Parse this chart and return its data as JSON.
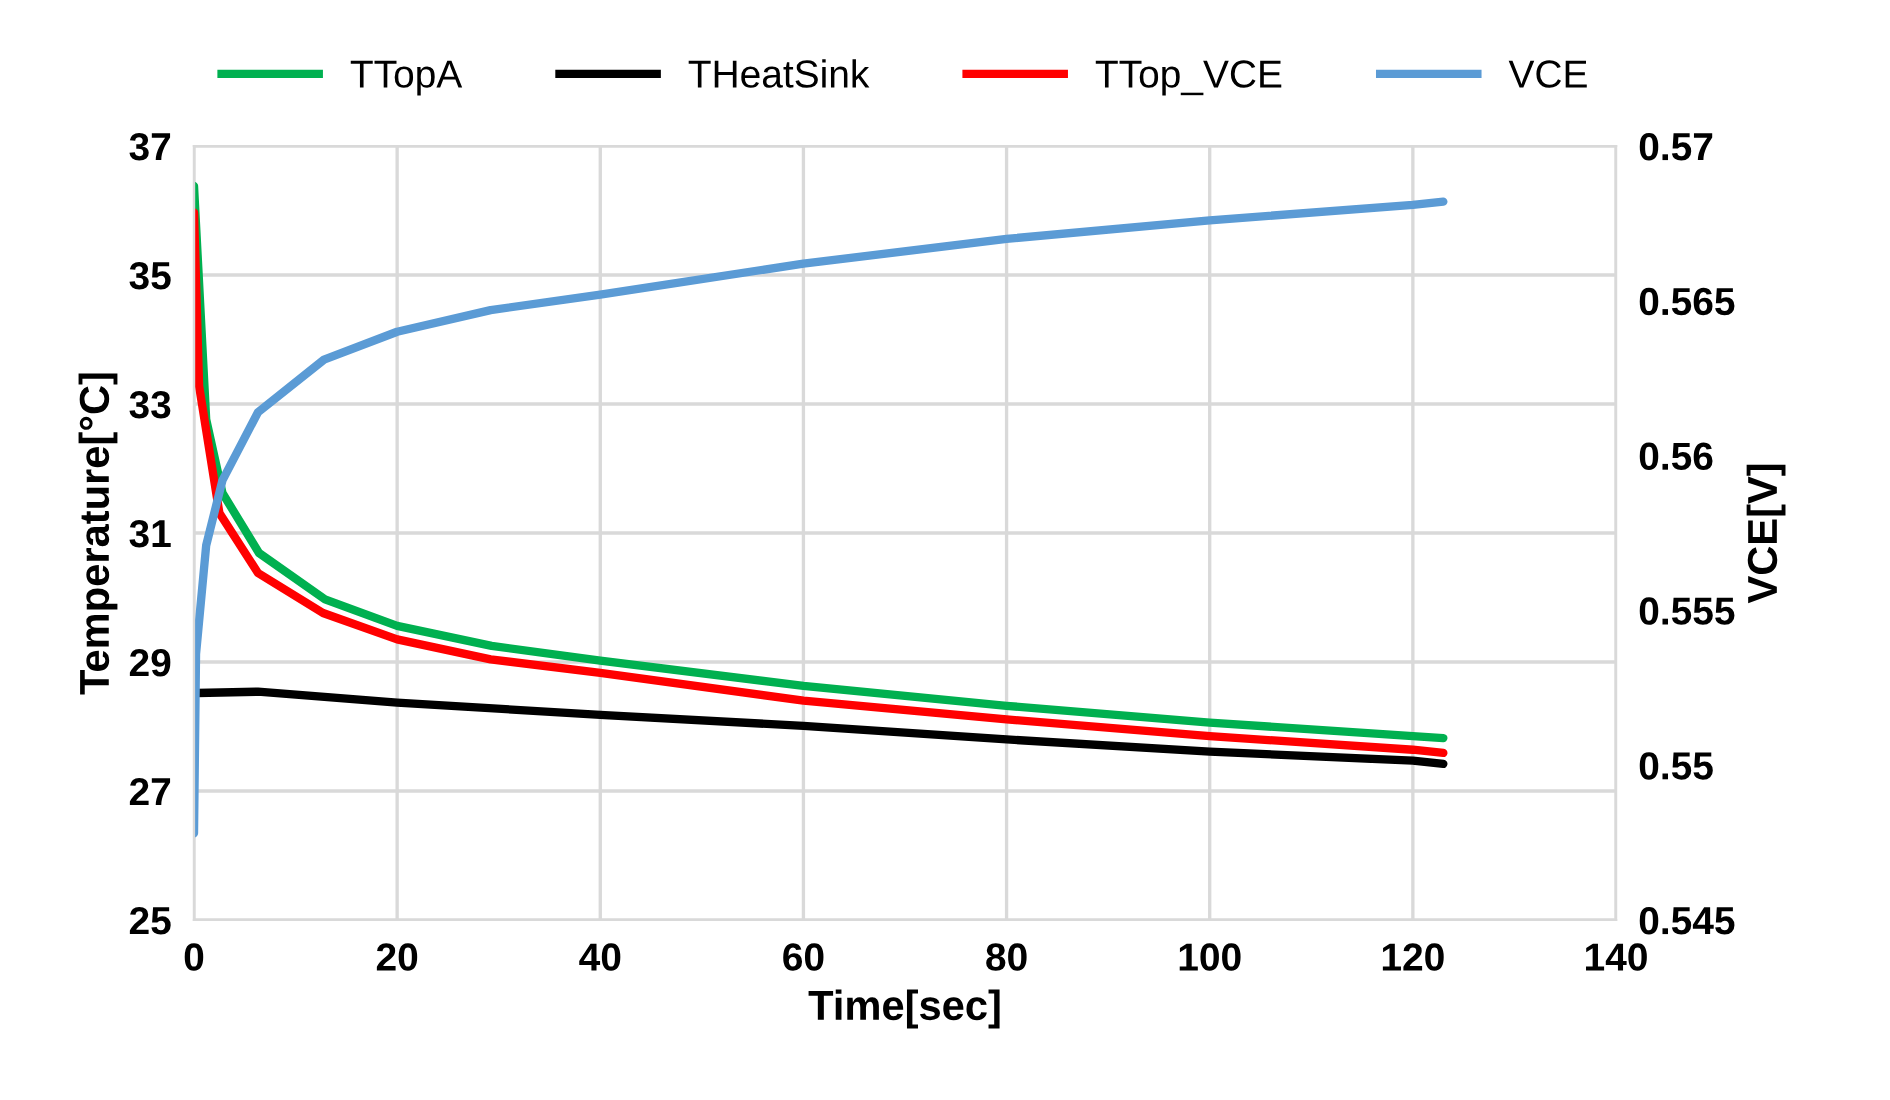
{
  "chart_data": {
    "type": "line",
    "xlabel": "Time[sec]",
    "ylabel": "Temperature[°C]",
    "y2label": "VCE[V]",
    "xlim": [
      0,
      140
    ],
    "xticks": [
      0,
      20,
      40,
      60,
      80,
      100,
      120,
      140
    ],
    "ylim": [
      25,
      37
    ],
    "yticks": [
      25,
      27,
      29,
      31,
      33,
      35,
      37
    ],
    "y2lim": [
      0.545,
      0.57
    ],
    "y2ticks": [
      {
        "value": 0.545,
        "label": "0.545"
      },
      {
        "value": 0.55,
        "label": "0.55"
      },
      {
        "value": 0.555,
        "label": "0.555"
      },
      {
        "value": 0.56,
        "label": "0.56"
      },
      {
        "value": 0.565,
        "label": "0.565"
      },
      {
        "value": 0.57,
        "label": "0.57"
      }
    ],
    "grid": true,
    "legend": "top",
    "marker": "none",
    "line_style": "solid",
    "series": [
      {
        "name": "TTopA",
        "color": "#00b050",
        "x": [
          0,
          1.2,
          2.8,
          6.4,
          12.9,
          20,
          29.3,
          40,
          60,
          80,
          100,
          120,
          123
        ],
        "values": [
          36.38,
          32.76,
          31.62,
          30.69,
          29.97,
          29.56,
          29.25,
          29.02,
          28.63,
          28.32,
          28.06,
          27.85,
          27.82
        ]
      },
      {
        "name": "THeatSink",
        "color": "#000000",
        "x": [
          0.3,
          6.3,
          20,
          40,
          60,
          80,
          100,
          120,
          123
        ],
        "values": [
          28.52,
          28.54,
          28.37,
          28.18,
          28.01,
          27.8,
          27.61,
          27.47,
          27.42
        ]
      },
      {
        "name": "TTop_VCE",
        "color": "#ff0000",
        "x": [
          0,
          0.5,
          2.5,
          6.3,
          12.7,
          20,
          29.2,
          40,
          60,
          80,
          100,
          120,
          123
        ],
        "values": [
          35.97,
          33.28,
          31.31,
          30.38,
          29.76,
          29.35,
          29.04,
          28.83,
          28.4,
          28.11,
          27.85,
          27.64,
          27.59
        ]
      },
      {
        "name": "VCE",
        "color": "#5b9bd5",
        "axis": "y2",
        "x": [
          0,
          0.2,
          1.2,
          2.8,
          6.3,
          12.8,
          20,
          29.2,
          40,
          60,
          80,
          100,
          120,
          123
        ],
        "values": [
          0.5478,
          0.5536,
          0.5571,
          0.5592,
          0.5614,
          0.5631,
          0.564,
          0.5647,
          0.5652,
          0.5662,
          0.567,
          0.5676,
          0.5681,
          0.5682
        ]
      }
    ]
  }
}
